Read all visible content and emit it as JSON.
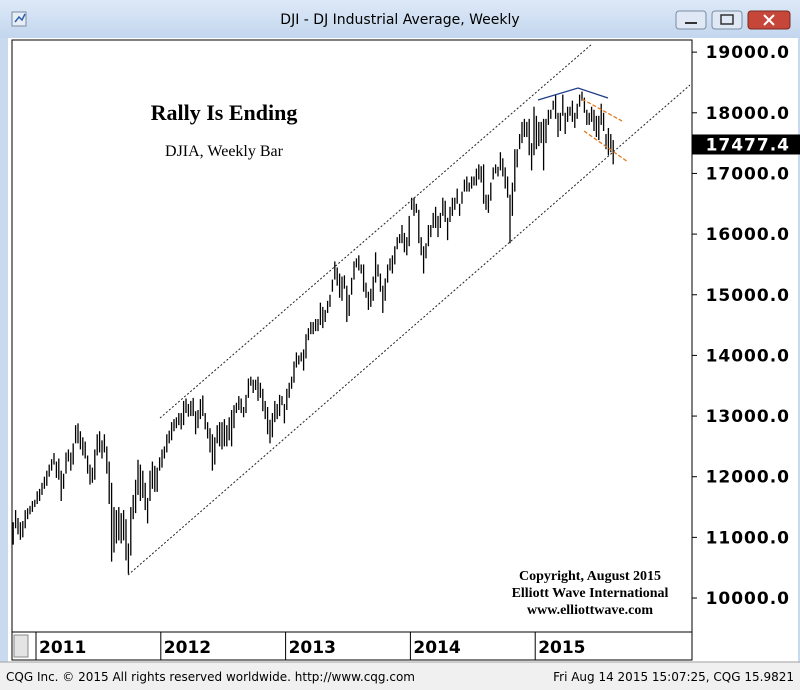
{
  "window": {
    "title": "DJI - DJ Industrial Average, Weekly"
  },
  "chart_data": {
    "type": "ohlc",
    "title": "Rally Is Ending",
    "subtitle": "DJIA, Weekly Bar",
    "annotations": [
      "Copyright, August 2015",
      "Elliott Wave International",
      "www.elliottwave.com"
    ],
    "color": "#000000",
    "last_value": 17477.4,
    "ylim": [
      9440,
      19200
    ],
    "yticks": [
      {
        "value": 10000,
        "label": "10000.0"
      },
      {
        "value": 11000,
        "label": "11000.0"
      },
      {
        "value": 12000,
        "label": "12000.0"
      },
      {
        "value": 13000,
        "label": "13000.0"
      },
      {
        "value": 14000,
        "label": "14000.0"
      },
      {
        "value": 15000,
        "label": "15000.0"
      },
      {
        "value": 16000,
        "label": "16000.0"
      },
      {
        "value": 17000,
        "label": "17000.0"
      },
      {
        "value": 18000,
        "label": "18000.0"
      },
      {
        "value": 19000,
        "label": "19000.0"
      }
    ],
    "categories": [
      null,
      null,
      null,
      null,
      null,
      null,
      null,
      null,
      null,
      null,
      "2011",
      null,
      null,
      null,
      null,
      null,
      null,
      null,
      null,
      null,
      null,
      null,
      null,
      null,
      null,
      null,
      null,
      null,
      null,
      null,
      null,
      null,
      null,
      null,
      null,
      null,
      null,
      null,
      null,
      null,
      null,
      null,
      null,
      null,
      null,
      null,
      null,
      null,
      null,
      null,
      null,
      null,
      null,
      null,
      null,
      null,
      null,
      null,
      null,
      null,
      null,
      null,
      "2012",
      null,
      null,
      null,
      null,
      null,
      null,
      null,
      null,
      null,
      null,
      null,
      null,
      null,
      null,
      null,
      null,
      null,
      null,
      null,
      null,
      null,
      null,
      null,
      null,
      null,
      null,
      null,
      null,
      null,
      null,
      null,
      null,
      null,
      null,
      null,
      null,
      null,
      null,
      null,
      null,
      null,
      null,
      null,
      null,
      null,
      null,
      null,
      null,
      null,
      null,
      null,
      "2013",
      null,
      null,
      null,
      null,
      null,
      null,
      null,
      null,
      null,
      null,
      null,
      null,
      null,
      null,
      null,
      null,
      null,
      null,
      null,
      null,
      null,
      null,
      null,
      null,
      null,
      null,
      null,
      null,
      null,
      null,
      null,
      null,
      null,
      null,
      null,
      null,
      null,
      null,
      null,
      null,
      null,
      null,
      null,
      null,
      null,
      null,
      null,
      null,
      null,
      null,
      null,
      "2014",
      null,
      null,
      null,
      null,
      null,
      null,
      null,
      null,
      null,
      null,
      null,
      null,
      null,
      null,
      null,
      null,
      null,
      null,
      null,
      null,
      null,
      null,
      null,
      null,
      null,
      null,
      null,
      null,
      null,
      null,
      null,
      null,
      null,
      null,
      null,
      null,
      null,
      null,
      null,
      null,
      null,
      null,
      null,
      null,
      null,
      null,
      null,
      null,
      null,
      null,
      null,
      "2015",
      null,
      null,
      null,
      null,
      null,
      null,
      null,
      null,
      null,
      null,
      null,
      null,
      null,
      null,
      null,
      null,
      null,
      null,
      null,
      null,
      null,
      null,
      null,
      null,
      null,
      null,
      null,
      null,
      null,
      null,
      null,
      null
    ],
    "high": [
      11250,
      11450,
      11320,
      11250,
      11270,
      11450,
      11480,
      11520,
      11600,
      11620,
      11760,
      11800,
      11900,
      12000,
      12100,
      12200,
      12290,
      12390,
      12250,
      12300,
      12100,
      12050,
      12400,
      12450,
      12400,
      12550,
      12850,
      12880,
      12750,
      12650,
      12580,
      12350,
      12200,
      12150,
      12450,
      12700,
      12750,
      12600,
      12700,
      12500,
      12250,
      11900,
      11500,
      11450,
      11500,
      11400,
      11450,
      11300,
      10900,
      11500,
      11700,
      11950,
      12280,
      12200,
      12100,
      11900,
      11650,
      12100,
      12250,
      12180,
      12150,
      12320,
      12450,
      12500,
      12700,
      12760,
      12900,
      12950,
      12980,
      13050,
      13050,
      13250,
      13290,
      13200,
      13250,
      13300,
      13080,
      13100,
      13280,
      13340,
      13050,
      12900,
      12800,
      12700,
      12650,
      12850,
      12900,
      12900,
      12950,
      12850,
      12980,
      13100,
      13180,
      13220,
      13330,
      13290,
      13150,
      13350,
      13620,
      13650,
      13600,
      13600,
      13650,
      13550,
      13450,
      13250,
      13150,
      12940,
      13050,
      13250,
      13200,
      13350,
      13330,
      13200,
      13450,
      13550,
      13650,
      13900,
      14050,
      14000,
      14050,
      14100,
      14350,
      14450,
      14550,
      14550,
      14600,
      14600,
      14870,
      14800,
      14750,
      14900,
      15000,
      15250,
      15550,
      15450,
      15350,
      15300,
      15320,
      15150,
      15000,
      15280,
      15550,
      15600,
      15650,
      15500,
      15500,
      15200,
      15050,
      15100,
      15300,
      15700,
      15500,
      15350,
      15150,
      15270,
      15500,
      15600,
      15650,
      15800,
      15950,
      16000,
      16150,
      16020,
      15950,
      16300,
      16600,
      16600,
      16500,
      16400,
      15950,
      15800,
      15850,
      16150,
      16150,
      16350,
      16450,
      16300,
      16350,
      16600,
      16550,
      16270,
      16450,
      16600,
      16600,
      16750,
      16500,
      16700,
      16900,
      16950,
      16850,
      16950,
      16950,
      17080,
      17150,
      17120,
      17150,
      16650,
      16650,
      16850,
      17100,
      17150,
      17110,
      17350,
      17250,
      17100,
      16950,
      16650,
      16850,
      17400,
      17400,
      17650,
      17850,
      17900,
      17850,
      17900,
      17500,
      18100,
      17950,
      17850,
      17850,
      17900,
      17900,
      18050,
      18050,
      18200,
      18300,
      18000,
      18000,
      18300,
      18000,
      18100,
      18100,
      18200,
      18000,
      18150,
      18300,
      18350,
      18250,
      18050,
      18000,
      18100,
      18050,
      17950,
      17950,
      18150,
      18000,
      17650,
      17750,
      17650,
      17550
    ],
    "low": [
      10880,
      11150,
      11050,
      10960,
      11000,
      11150,
      11300,
      11380,
      11420,
      11500,
      11550,
      11600,
      11700,
      11800,
      11850,
      12000,
      12100,
      12200,
      11980,
      11950,
      11600,
      11800,
      12050,
      12250,
      12100,
      12200,
      12550,
      12550,
      12450,
      12350,
      12300,
      12050,
      11870,
      11900,
      11950,
      12350,
      12400,
      12300,
      12400,
      12050,
      11550,
      10600,
      10750,
      10900,
      10950,
      10900,
      10950,
      10620,
      10400,
      10700,
      11300,
      11400,
      11700,
      11600,
      11650,
      11450,
      11230,
      11600,
      11800,
      11750,
      11750,
      12100,
      12150,
      12300,
      12400,
      12550,
      12600,
      12750,
      12800,
      12850,
      12780,
      12850,
      13050,
      12990,
      13000,
      13000,
      12700,
      12800,
      12950,
      13000,
      12780,
      12630,
      12400,
      12100,
      12200,
      12550,
      12500,
      12450,
      12500,
      12500,
      12600,
      12500,
      12800,
      13050,
      13100,
      13050,
      12980,
      13050,
      13300,
      13500,
      13380,
      13430,
      13250,
      13300,
      13080,
      12950,
      12700,
      12550,
      12650,
      12900,
      12950,
      13000,
      13180,
      12880,
      13100,
      13300,
      13450,
      13550,
      13800,
      13850,
      13900,
      13750,
      13950,
      14250,
      14350,
      14350,
      14400,
      14400,
      14500,
      14450,
      14550,
      14700,
      14800,
      15050,
      15250,
      15150,
      14950,
      14900,
      15100,
      14550,
      14650,
      15000,
      15250,
      15450,
      15400,
      15350,
      15050,
      14950,
      14750,
      14800,
      14900,
      15200,
      15300,
      15050,
      14700,
      14900,
      15200,
      15400,
      15350,
      15500,
      15750,
      15850,
      15850,
      15700,
      15650,
      15800,
      16400,
      16300,
      16350,
      15850,
      15650,
      15350,
      15600,
      15800,
      15950,
      16100,
      16100,
      15950,
      16100,
      16300,
      16200,
      15900,
      16200,
      16300,
      16400,
      16500,
      16300,
      16500,
      16700,
      16700,
      16700,
      16750,
      16800,
      16800,
      16900,
      16850,
      16500,
      16400,
      16350,
      16550,
      16900,
      17000,
      16950,
      17050,
      16950,
      16750,
      16600,
      15850,
      16300,
      16700,
      17100,
      17400,
      17500,
      17600,
      17600,
      17300,
      17050,
      17300,
      17400,
      17450,
      17500,
      17050,
      17500,
      17800,
      17900,
      18050,
      17900,
      17600,
      17700,
      17950,
      17650,
      17850,
      17950,
      17850,
      17750,
      17900,
      18100,
      18200,
      18000,
      17800,
      17800,
      17850,
      17700,
      17600,
      17550,
      17800,
      17700,
      17400,
      17300,
      17350,
      17150
    ]
  },
  "status_bar": {
    "left": "CQG Inc. © 2015 All rights reserved worldwide. http://www.cqg.com",
    "right": "Fri Aug 14 2015 15:07:25, CQG 15.9821"
  }
}
